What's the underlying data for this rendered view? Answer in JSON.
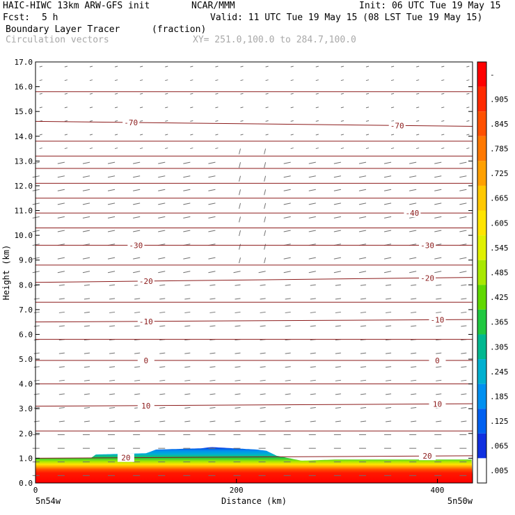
{
  "header": {
    "model": "HAIC-HIWC 13km ARW-GFS init",
    "center": "NCAR/MMM",
    "init": "Init: 06 UTC Tue 19 May 15",
    "fcst_label": "Fcst:",
    "fcst_value": "5 h",
    "valid": "Valid: 11 UTC Tue 19 May 15 (08 LST Tue 19 May 15)",
    "field": "Boundary Layer Tracer",
    "units": "(fraction)",
    "vectors": "Circulation vectors",
    "xy": "XY= 251.0,100.0 to 284.7,100.0"
  },
  "colors": {
    "contour": "#8b1a1a",
    "vector": "#707070",
    "plot_border": "#000000"
  },
  "chart_data": {
    "type": "heatmap",
    "ylabel": "Height (km)",
    "xlabel": "Distance (km)",
    "xlim": [
      0,
      435
    ],
    "ylim": [
      0,
      17
    ],
    "y_ticks": [
      "0.0",
      "1.0",
      "2.0",
      "3.0",
      "4.0",
      "5.0",
      "6.0",
      "7.0",
      "8.0",
      "9.0",
      "10.0",
      "11.0",
      "12.0",
      "13.0",
      "14.0",
      "15.0",
      "16.0",
      "17.0"
    ],
    "x_ticks": [
      {
        "value": 0,
        "label": "0"
      },
      {
        "value": 200,
        "label": "200"
      },
      {
        "value": 400,
        "label": "400"
      }
    ],
    "x_end_labels": {
      "left": "5n54w",
      "right": "5n50w"
    },
    "colorbar": {
      "labels": [
        "-",
        ".905",
        ".845",
        ".785",
        ".725",
        ".665",
        ".605",
        ".545",
        ".485",
        ".425",
        ".365",
        ".305",
        ".245",
        ".185",
        ".125",
        ".065",
        ".005"
      ],
      "colors": [
        "#ff0000",
        "#ff2a00",
        "#ff5000",
        "#ff7800",
        "#ffa000",
        "#ffc800",
        "#ffe400",
        "#e0f000",
        "#a8e800",
        "#60d800",
        "#20c840",
        "#00b890",
        "#00b0d0",
        "#0090f0",
        "#0060f0",
        "#1030e0",
        "#ffffff"
      ]
    },
    "tracer_top_km": [
      [
        0,
        1.0
      ],
      [
        55,
        1.0
      ],
      [
        60,
        1.15
      ],
      [
        110,
        1.2
      ],
      [
        120,
        1.35
      ],
      [
        165,
        1.4
      ],
      [
        175,
        1.45
      ],
      [
        220,
        1.35
      ],
      [
        230,
        1.3
      ],
      [
        240,
        1.1
      ],
      [
        265,
        0.9
      ],
      [
        300,
        0.95
      ],
      [
        360,
        0.95
      ],
      [
        435,
        0.95
      ]
    ],
    "temperature_contours": [
      {
        "label": "-70",
        "y_left": 14.6,
        "y_right": 14.4,
        "label_x": [
          95,
          360
        ]
      },
      {
        "label": "-40",
        "y_left": 10.9,
        "y_right": 10.9,
        "label_x": [
          375
        ]
      },
      {
        "label": "-30",
        "y_left": 9.6,
        "y_right": 9.6,
        "label_x": [
          100,
          390
        ]
      },
      {
        "label": "-20",
        "y_left": 8.1,
        "y_right": 8.3,
        "label_x": [
          110,
          390
        ]
      },
      {
        "label": "-10",
        "y_left": 6.5,
        "y_right": 6.6,
        "label_x": [
          110,
          400
        ]
      },
      {
        "label": "0",
        "y_left": 4.95,
        "y_right": 4.95,
        "label_x": [
          110,
          400
        ]
      },
      {
        "label": "10",
        "y_left": 3.1,
        "y_right": 3.2,
        "label_x": [
          110,
          400
        ]
      },
      {
        "label": "20",
        "y_left": 1.0,
        "y_right": 1.1,
        "label_x": [
          90,
          390
        ]
      }
    ],
    "unlabeled_contour_heights_km": [
      15.8,
      13.8,
      13.2,
      12.7,
      12.1,
      11.5,
      10.3,
      8.8,
      7.3,
      5.8,
      4.0,
      2.1
    ]
  }
}
